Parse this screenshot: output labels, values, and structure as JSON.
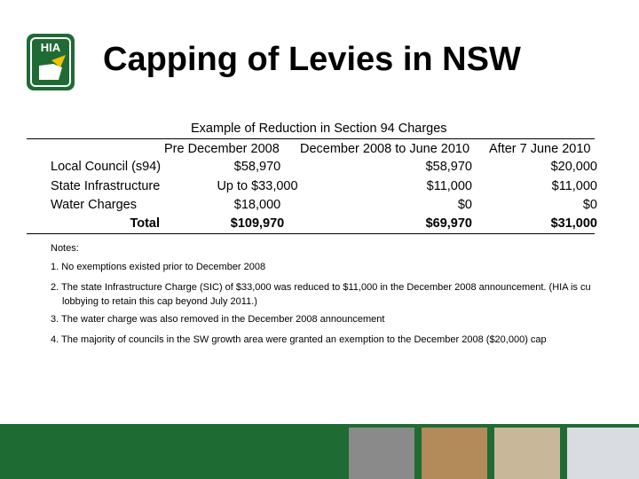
{
  "header": {
    "logo": "HIA",
    "title": "Capping of Levies in NSW"
  },
  "table": {
    "caption": "Example of Reduction in Section 94 Charges",
    "columns": [
      "Pre December 2008",
      "December 2008 to June 2010",
      "After 7 June 2010"
    ],
    "rows": [
      [
        "Local Council (s94)",
        "$58,970",
        "$58,970",
        "$20,000"
      ],
      [
        "State Infrastructure",
        "Up to $33,000",
        "$11,000",
        "$11,000"
      ],
      [
        "Water Charges",
        "$18,000",
        "$0",
        "$0"
      ],
      [
        "Total",
        "$109,970",
        "$69,970",
        "$31,000"
      ]
    ]
  },
  "notes": {
    "heading": "Notes:",
    "items": [
      [
        "1. No exemptions existed prior to December 2008"
      ],
      [
        "2. The state Infrastructure Charge (SIC) of $33,000 was reduced to $11,000 in the December 2008 announcement.  (HIA is cu",
        "lobbying to retain this cap beyond July 2011.)"
      ],
      [
        "3. The water charge was also removed in the December 2008 announcement"
      ],
      [
        "4. The majority of councils in the SW growth area were granted an exemption to the December 2008 ($20,000) cap"
      ]
    ]
  }
}
